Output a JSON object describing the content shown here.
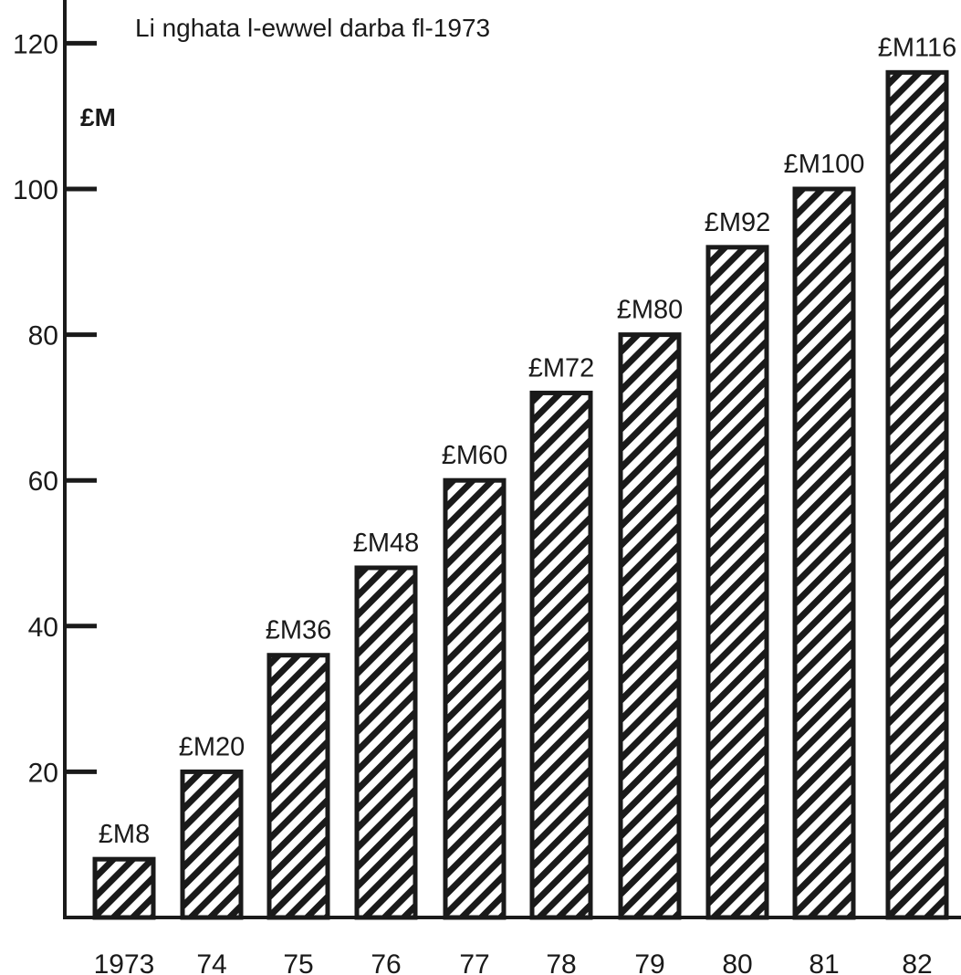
{
  "chart_data": {
    "type": "bar",
    "title": "Li nghata l-ewwel darba fl-1973",
    "ylabel": "£M",
    "xlabel": "",
    "categories": [
      "1973",
      "74",
      "75",
      "76",
      "77",
      "78",
      "79",
      "80",
      "81",
      "82"
    ],
    "values": [
      8,
      20,
      36,
      48,
      60,
      72,
      80,
      92,
      100,
      116
    ],
    "value_labels": [
      "£M8",
      "£M20",
      "£M36",
      "£M48",
      "£M60",
      "£M72",
      "£M80",
      "£M92",
      "£M100",
      "£M116"
    ],
    "yticks": [
      20,
      40,
      60,
      80,
      100,
      120
    ],
    "ylim": [
      0,
      125
    ],
    "grid": false,
    "bar_fill": "hatched",
    "colors": {
      "ink": "#1a1a1a",
      "background": "#ffffff"
    }
  }
}
